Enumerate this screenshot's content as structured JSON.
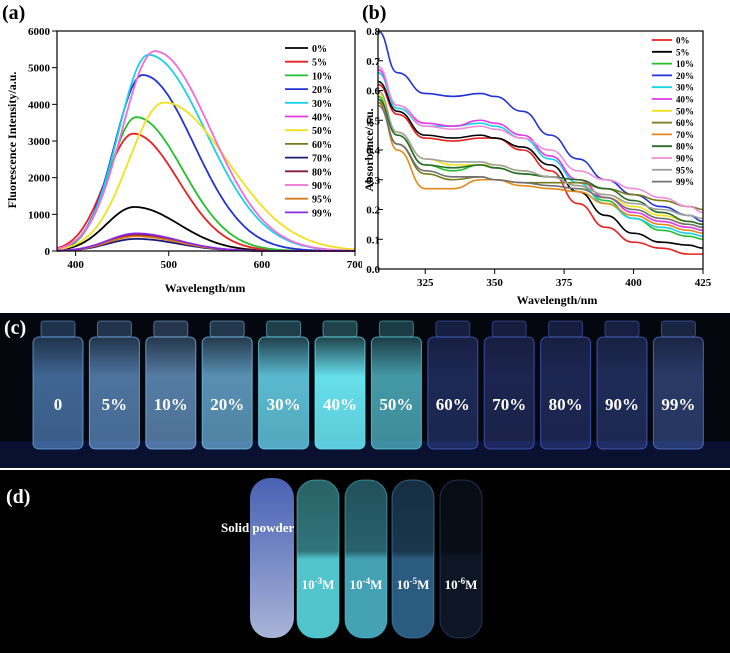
{
  "figure": {
    "label_a": "(a)",
    "label_b": "(b)",
    "label_c": "(c)",
    "label_d": "(d)"
  },
  "chart_data": [
    {
      "type": "line",
      "panel": "(a)",
      "xlabel": "Wavelength/nm",
      "ylabel": "Fluorescence Intensity/a.u.",
      "xlim": [
        380,
        700
      ],
      "ylim": [
        0,
        6000
      ],
      "xticks": [
        400,
        500,
        600,
        700
      ],
      "yticks": [
        0,
        1000,
        2000,
        3000,
        4000,
        5000,
        6000
      ],
      "legend_position": "top-right",
      "series": [
        {
          "name": "0%",
          "color": "#000000",
          "peak_x": 463,
          "peak_y": 1200,
          "width_left": 30,
          "width_right": 48
        },
        {
          "name": "5%",
          "color": "#e8211f",
          "peak_x": 462,
          "peak_y": 3200,
          "width_left": 30,
          "width_right": 48
        },
        {
          "name": "10%",
          "color": "#22c02a",
          "peak_x": 465,
          "peak_y": 3650,
          "width_left": 28,
          "width_right": 50
        },
        {
          "name": "20%",
          "color": "#2233d6",
          "peak_x": 472,
          "peak_y": 4800,
          "width_left": 30,
          "width_right": 55
        },
        {
          "name": "30%",
          "color": "#18d2e6",
          "peak_x": 478,
          "peak_y": 5350,
          "width_left": 32,
          "width_right": 62
        },
        {
          "name": "40%",
          "color": "#e238e6",
          "peak_x": 465,
          "peak_y": 460,
          "width_left": 30,
          "width_right": 45
        },
        {
          "name": "50%",
          "color": "#efe21c",
          "peak_x": 495,
          "peak_y": 4050,
          "width_left": 38,
          "width_right": 68
        },
        {
          "name": "60%",
          "color": "#7a7a18",
          "peak_x": 465,
          "peak_y": 420,
          "width_left": 30,
          "width_right": 45
        },
        {
          "name": "70%",
          "color": "#1a1a7a",
          "peak_x": 465,
          "peak_y": 330,
          "width_left": 30,
          "width_right": 45
        },
        {
          "name": "80%",
          "color": "#8a1a3a",
          "peak_x": 465,
          "peak_y": 440,
          "width_left": 30,
          "width_right": 45
        },
        {
          "name": "90%",
          "color": "#f06cd8",
          "peak_x": 485,
          "peak_y": 5450,
          "width_left": 35,
          "width_right": 60
        },
        {
          "name": "95%",
          "color": "#d87a1a",
          "peak_x": 465,
          "peak_y": 400,
          "width_left": 30,
          "width_right": 45
        },
        {
          "name": "99%",
          "color": "#8a2ae6",
          "peak_x": 465,
          "peak_y": 480,
          "width_left": 30,
          "width_right": 45
        }
      ]
    },
    {
      "type": "line",
      "panel": "(b)",
      "xlabel": "Wavelength/nm",
      "ylabel": "Absorbance/a.u.",
      "xlim": [
        308,
        425
      ],
      "ylim": [
        0.0,
        0.8
      ],
      "xticks": [
        325,
        350,
        375,
        400,
        425
      ],
      "yticks": [
        0.0,
        0.1,
        0.2,
        0.3,
        0.4,
        0.5,
        0.6,
        0.7,
        0.8
      ],
      "legend_position": "top-right",
      "x": [
        308,
        315,
        325,
        335,
        345,
        350,
        360,
        370,
        380,
        390,
        400,
        410,
        420,
        425
      ],
      "series": [
        {
          "name": "0%",
          "color": "#e8211f",
          "values": [
            0.62,
            0.52,
            0.44,
            0.43,
            0.44,
            0.44,
            0.4,
            0.33,
            0.22,
            0.14,
            0.09,
            0.07,
            0.05,
            0.05
          ]
        },
        {
          "name": "5%",
          "color": "#000000",
          "values": [
            0.63,
            0.53,
            0.45,
            0.44,
            0.45,
            0.44,
            0.41,
            0.35,
            0.26,
            0.18,
            0.12,
            0.09,
            0.08,
            0.07
          ]
        },
        {
          "name": "10%",
          "color": "#22c02a",
          "values": [
            0.58,
            0.45,
            0.35,
            0.33,
            0.35,
            0.34,
            0.32,
            0.31,
            0.28,
            0.23,
            0.17,
            0.13,
            0.11,
            0.1
          ]
        },
        {
          "name": "20%",
          "color": "#2233d6",
          "values": [
            0.8,
            0.66,
            0.59,
            0.58,
            0.59,
            0.58,
            0.53,
            0.45,
            0.37,
            0.3,
            0.25,
            0.21,
            0.18,
            0.16
          ]
        },
        {
          "name": "30%",
          "color": "#18d2e6",
          "values": [
            0.66,
            0.54,
            0.48,
            0.48,
            0.49,
            0.48,
            0.44,
            0.37,
            0.29,
            0.22,
            0.17,
            0.14,
            0.12,
            0.11
          ]
        },
        {
          "name": "40%",
          "color": "#e238e6",
          "values": [
            0.67,
            0.55,
            0.49,
            0.48,
            0.5,
            0.49,
            0.45,
            0.38,
            0.3,
            0.24,
            0.19,
            0.16,
            0.14,
            0.13
          ]
        },
        {
          "name": "50%",
          "color": "#efe21c",
          "values": [
            0.59,
            0.46,
            0.37,
            0.35,
            0.35,
            0.35,
            0.33,
            0.31,
            0.28,
            0.25,
            0.21,
            0.18,
            0.16,
            0.15
          ]
        },
        {
          "name": "60%",
          "color": "#7a7a18",
          "values": [
            0.56,
            0.42,
            0.32,
            0.3,
            0.31,
            0.3,
            0.29,
            0.29,
            0.29,
            0.27,
            0.25,
            0.23,
            0.21,
            0.2
          ]
        },
        {
          "name": "70%",
          "color": "#e08a1a",
          "values": [
            0.57,
            0.4,
            0.27,
            0.27,
            0.3,
            0.3,
            0.28,
            0.27,
            0.26,
            0.22,
            0.18,
            0.15,
            0.13,
            0.12
          ]
        },
        {
          "name": "80%",
          "color": "#2a6a2a",
          "values": [
            0.57,
            0.45,
            0.35,
            0.34,
            0.35,
            0.34,
            0.32,
            0.31,
            0.3,
            0.27,
            0.23,
            0.19,
            0.16,
            0.15
          ]
        },
        {
          "name": "90%",
          "color": "#f08cd8",
          "values": [
            0.68,
            0.55,
            0.48,
            0.47,
            0.48,
            0.47,
            0.44,
            0.4,
            0.33,
            0.3,
            0.27,
            0.24,
            0.21,
            0.19
          ]
        },
        {
          "name": "95%",
          "color": "#a0a0a0",
          "values": [
            0.6,
            0.46,
            0.37,
            0.36,
            0.36,
            0.35,
            0.33,
            0.31,
            0.28,
            0.25,
            0.22,
            0.2,
            0.18,
            0.17
          ]
        },
        {
          "name": "99%",
          "color": "#707070",
          "values": [
            0.55,
            0.42,
            0.33,
            0.31,
            0.31,
            0.3,
            0.29,
            0.28,
            0.27,
            0.24,
            0.2,
            0.17,
            0.15,
            0.14
          ]
        }
      ]
    }
  ],
  "photo_c": {
    "vials": [
      {
        "label": "0",
        "color": "#6fb3ff",
        "glow": 0.55
      },
      {
        "label": "5%",
        "color": "#7cbcff",
        "glow": 0.6
      },
      {
        "label": "10%",
        "color": "#86c4ff",
        "glow": 0.62
      },
      {
        "label": "20%",
        "color": "#7fd0ff",
        "glow": 0.68
      },
      {
        "label": "30%",
        "color": "#70e6ff",
        "glow": 0.8
      },
      {
        "label": "40%",
        "color": "#6ef2ff",
        "glow": 0.92
      },
      {
        "label": "50%",
        "color": "#5fd8e8",
        "glow": 0.7
      },
      {
        "label": "60%",
        "color": "#4a68d8",
        "glow": 0.35
      },
      {
        "label": "70%",
        "color": "#4a62d0",
        "glow": 0.33
      },
      {
        "label": "80%",
        "color": "#4b64d4",
        "glow": 0.34
      },
      {
        "label": "90%",
        "color": "#4e6cd8",
        "glow": 0.36
      },
      {
        "label": "99%",
        "color": "#5a80e0",
        "glow": 0.42
      }
    ]
  },
  "photo_d": {
    "solid_label": "Solid powder",
    "tubes": [
      {
        "base": "10",
        "exp": "-3",
        "unit": "M",
        "color": "#5fe6f0",
        "glow": 0.85
      },
      {
        "base": "10",
        "exp": "-4",
        "unit": "M",
        "color": "#5ad8f0",
        "glow": 0.75
      },
      {
        "base": "10",
        "exp": "-5",
        "unit": "M",
        "color": "#4ea6e8",
        "glow": 0.55
      },
      {
        "base": "10",
        "exp": "-6",
        "unit": "M",
        "color": "#3a5a9a",
        "glow": 0.25
      }
    ],
    "solid_color": "#5a7ae0"
  }
}
